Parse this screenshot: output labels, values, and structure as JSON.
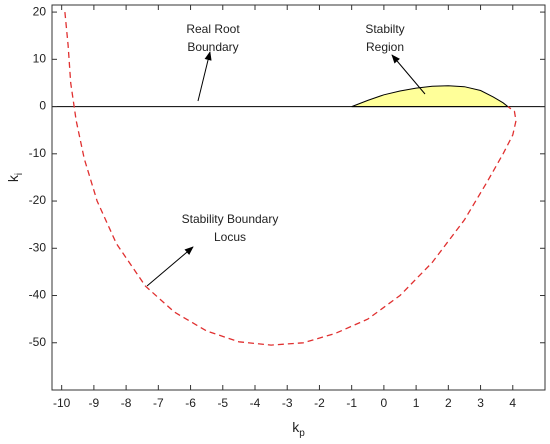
{
  "chart_data": {
    "type": "line",
    "xlabel": {
      "text": "k",
      "sub": "p"
    },
    "ylabel": {
      "text": "k",
      "sub": "i"
    },
    "xlim": [
      -10.3,
      5
    ],
    "xticks": [
      -10,
      -9,
      -8,
      -7,
      -6,
      -5,
      -4,
      -3,
      -2,
      -1,
      0,
      1,
      2,
      3,
      4
    ],
    "ylim": [
      -60,
      21.5
    ],
    "yticks": [
      -50,
      -40,
      -30,
      -20,
      -10,
      0,
      10,
      20
    ],
    "series": [
      {
        "style": "fill",
        "color": "#ffff99",
        "x": [
          -1,
          -0.5,
          0,
          0.5,
          1,
          1.5,
          2,
          2.5,
          3,
          3.4,
          3.7,
          3.85
        ],
        "values": [
          0,
          1.3,
          2.5,
          3.3,
          3.9,
          4.3,
          4.4,
          4.2,
          3.4,
          2.0,
          0.8,
          0
        ]
      },
      {
        "style": "solid",
        "color": "#000000",
        "x": [
          -10.3,
          5
        ],
        "values": [
          0,
          0
        ]
      },
      {
        "style": "dashed",
        "color": "#e03030",
        "x": [
          -9.9,
          -9.8,
          -9.72,
          -9.55,
          -9.3,
          -8.9,
          -8.3,
          -7.4,
          -6.5,
          -5.5,
          -4.5,
          -3.5,
          -2.5,
          -1.5,
          -0.5,
          0.5,
          1.5,
          2.5,
          3.2,
          3.7,
          4.0,
          4.1,
          4.05,
          3.85
        ],
        "values": [
          20,
          13,
          5,
          -3,
          -11,
          -20,
          -29,
          -38,
          -43.5,
          -47.5,
          -49.8,
          -50.5,
          -50,
          -48,
          -45,
          -40,
          -33,
          -24,
          -16,
          -10,
          -6,
          -3,
          -1,
          0
        ]
      }
    ],
    "annotations": [
      {
        "text": [
          "Real Root",
          "Boundary"
        ]
      },
      {
        "text": [
          "Stabilty",
          "Region"
        ]
      },
      {
        "text": [
          "Stability Boundary",
          "Locus"
        ]
      }
    ]
  }
}
